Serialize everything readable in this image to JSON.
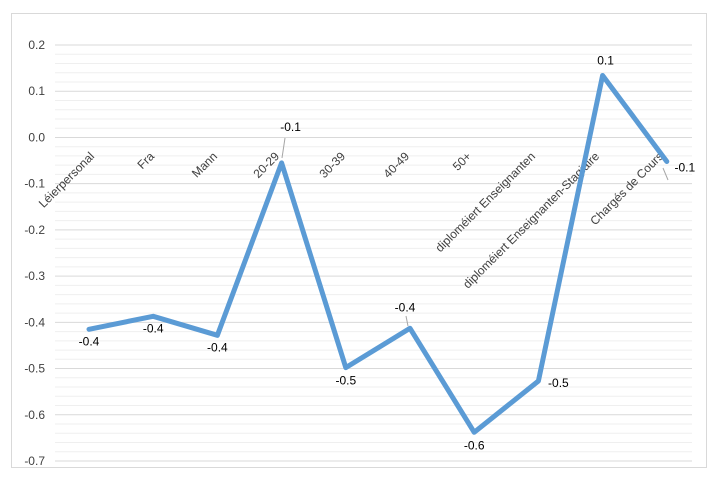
{
  "chart_data": {
    "type": "line",
    "title": "",
    "xlabel": "",
    "ylabel": "",
    "ylim": [
      -0.7,
      0.2
    ],
    "yticks": [
      "0.2",
      "0.1",
      "0.0",
      "-0.1",
      "-0.2",
      "-0.3",
      "-0.4",
      "-0.5",
      "-0.6",
      "-0.7"
    ],
    "grid": true,
    "categories": [
      "Léierpersonal",
      "Fra",
      "Mann",
      "20-29",
      "30-39",
      "40-49",
      "50+",
      "diploméiert Enseignanten",
      "diploméiert Enseignanten-Stagiaire",
      "Chargés de Cours"
    ],
    "series": [
      {
        "values": [
          -0.415,
          -0.387,
          -0.428,
          -0.055,
          -0.498,
          -0.413,
          -0.638,
          -0.527,
          0.134,
          -0.052
        ],
        "labels": [
          "-0.4",
          "-0.4",
          "-0.4",
          "-0.1",
          "-0.5",
          "-0.4",
          "-0.6",
          "-0.5",
          "0.1",
          "-0.1"
        ],
        "color": "#5b9bd5"
      }
    ]
  }
}
